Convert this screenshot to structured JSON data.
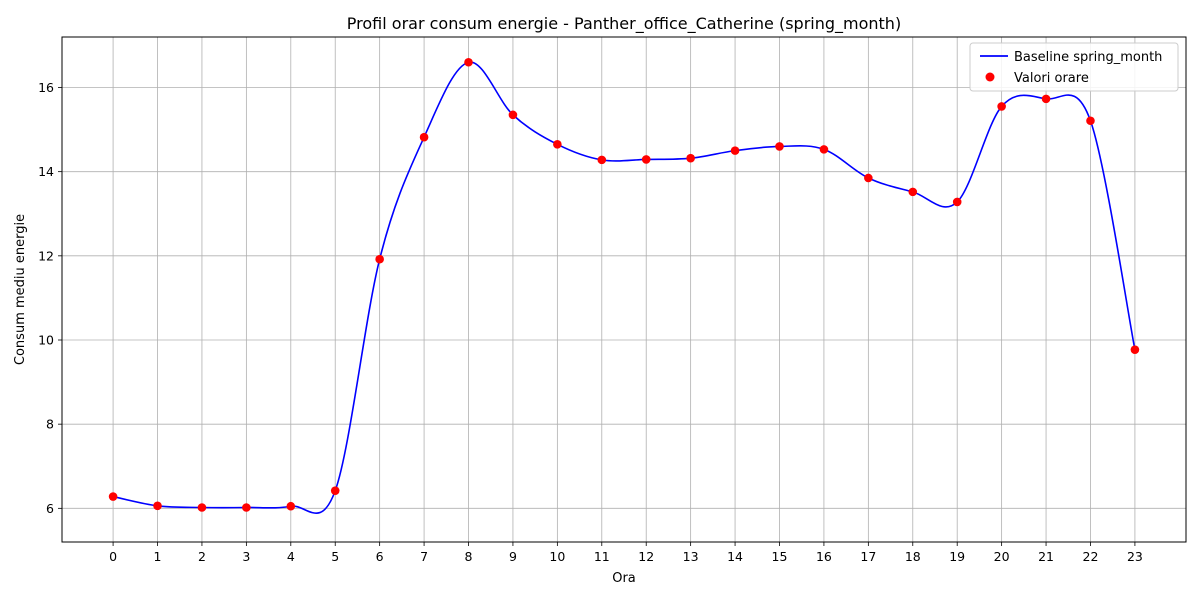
{
  "chart_data": {
    "type": "line",
    "title": "Profil orar consum energie - Panther_office_Catherine (spring_month)",
    "xlabel": "Ora",
    "ylabel": "Consum mediu energie",
    "x": [
      0,
      1,
      2,
      3,
      4,
      5,
      6,
      7,
      8,
      9,
      10,
      11,
      12,
      13,
      14,
      15,
      16,
      17,
      18,
      19,
      20,
      21,
      22,
      23
    ],
    "xlim": [
      -1.15,
      24.15
    ],
    "ylim": [
      5.2,
      17.2
    ],
    "yticks": [
      6,
      8,
      10,
      12,
      14,
      16
    ],
    "grid": true,
    "legend_position": "top-right",
    "series": [
      {
        "name": "Baseline spring_month",
        "kind": "smooth-line",
        "color": "#0000ff",
        "values": [
          6.28,
          6.06,
          6.02,
          6.02,
          6.05,
          6.42,
          11.92,
          14.82,
          16.6,
          15.35,
          14.65,
          14.28,
          14.29,
          14.32,
          14.5,
          14.6,
          14.53,
          13.85,
          13.52,
          13.28,
          15.55,
          15.73,
          15.21,
          9.77
        ]
      },
      {
        "name": "Valori orare",
        "kind": "scatter",
        "color": "#ff0000",
        "values": [
          6.28,
          6.06,
          6.02,
          6.02,
          6.05,
          6.42,
          11.92,
          14.82,
          16.6,
          15.35,
          14.65,
          14.28,
          14.29,
          14.32,
          14.5,
          14.6,
          14.53,
          13.85,
          13.52,
          13.28,
          15.55,
          15.73,
          15.21,
          9.77
        ]
      }
    ]
  }
}
